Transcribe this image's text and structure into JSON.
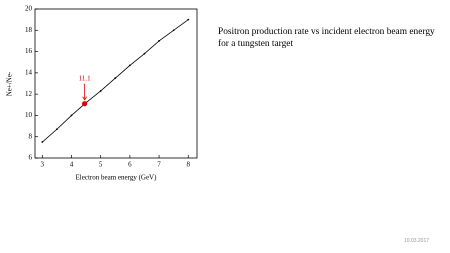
{
  "chart_data": {
    "type": "line",
    "x_label": "Electron beam energy  (GeV)",
    "y_label": "Ne+/Ne-",
    "x": [
      3,
      3.5,
      4,
      4.5,
      5,
      5.5,
      6,
      6.5,
      7,
      7.5,
      8
    ],
    "values": [
      7.5,
      8.7,
      10.0,
      11.2,
      12.3,
      13.5,
      14.7,
      15.8,
      17.0,
      18.0,
      19.0
    ],
    "color": "#000000",
    "xlim": [
      2.75,
      8.3
    ],
    "xticks": [
      3,
      4,
      5,
      6,
      7,
      8
    ],
    "ylim": [
      6,
      20
    ],
    "yticks": [
      6,
      8,
      10,
      12,
      14,
      16,
      18,
      20
    ],
    "annotation": {
      "x": 4.45,
      "value": 11.1,
      "color": "#e00000"
    }
  },
  "slide": {
    "text": "Positron production rate vs incident electron beam energy for a tungsten target",
    "date": "10.03.2017"
  }
}
